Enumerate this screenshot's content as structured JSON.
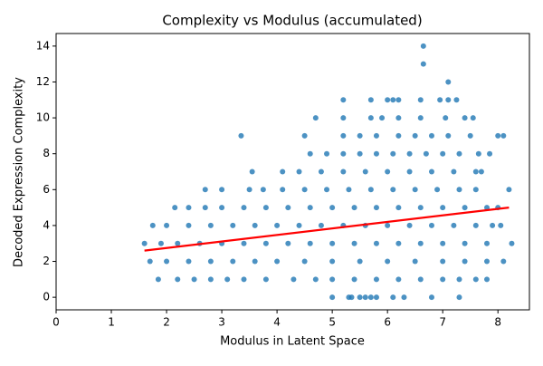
{
  "chart_data": {
    "type": "scatter",
    "title": "Complexity vs Modulus (accumulated)",
    "xlabel": "Modulus in Latent Space",
    "ylabel": "Decoded Expression Complexity",
    "xlim": [
      0,
      8.57
    ],
    "ylim": [
      -0.7,
      14.7
    ],
    "xticks": [
      0,
      1,
      2,
      3,
      4,
      5,
      6,
      7,
      8
    ],
    "yticks": [
      0,
      2,
      4,
      6,
      8,
      10,
      12,
      14
    ],
    "series": [
      {
        "color": "#1f77b4",
        "x": [
          5.0,
          5.3,
          5.35,
          5.5,
          5.6,
          5.7,
          5.8,
          6.1,
          6.3,
          6.8,
          7.3,
          1.85,
          2.2,
          2.5,
          2.8,
          3.1,
          3.4,
          3.8,
          4.3,
          4.7,
          5.0,
          5.4,
          5.8,
          6.2,
          6.6,
          7.0,
          7.3,
          7.6,
          7.8,
          1.7,
          2.0,
          2.4,
          2.8,
          3.2,
          3.6,
          4.0,
          4.5,
          5.0,
          5.5,
          6.0,
          6.5,
          7.0,
          7.4,
          7.8,
          8.1,
          1.6,
          1.9,
          2.2,
          2.6,
          3.0,
          3.4,
          3.8,
          4.2,
          4.6,
          5.0,
          5.4,
          5.8,
          6.2,
          6.6,
          7.0,
          7.4,
          7.8,
          8.25,
          1.75,
          2.0,
          2.4,
          2.8,
          3.2,
          3.6,
          4.0,
          4.4,
          4.8,
          5.2,
          5.6,
          6.0,
          6.4,
          6.8,
          7.2,
          7.6,
          7.9,
          8.05,
          2.15,
          2.4,
          2.7,
          3.0,
          3.4,
          3.8,
          4.2,
          4.6,
          5.0,
          5.4,
          5.8,
          6.2,
          6.6,
          7.0,
          7.4,
          7.8,
          8.0,
          2.7,
          3.0,
          3.5,
          3.75,
          4.1,
          4.5,
          4.9,
          5.3,
          5.7,
          6.1,
          6.5,
          6.9,
          7.3,
          7.6,
          8.2,
          3.55,
          4.1,
          4.4,
          4.8,
          5.2,
          5.6,
          6.0,
          6.4,
          6.8,
          7.2,
          7.6,
          7.7,
          4.6,
          4.9,
          5.2,
          5.5,
          5.8,
          6.1,
          6.4,
          6.7,
          7.0,
          7.3,
          7.65,
          7.85,
          3.35,
          4.5,
          5.2,
          5.5,
          5.8,
          6.2,
          6.5,
          6.8,
          7.1,
          7.5,
          8.0,
          8.1,
          4.7,
          5.2,
          5.7,
          5.9,
          6.2,
          6.6,
          7.05,
          7.4,
          7.55,
          5.2,
          5.7,
          6.0,
          6.1,
          6.2,
          6.6,
          6.95,
          7.1,
          7.25,
          7.1,
          6.65,
          6.65
        ],
        "y": [
          0,
          0,
          0,
          0,
          0,
          0,
          0,
          0,
          0,
          0,
          0,
          1,
          1,
          1,
          1,
          1,
          1,
          1,
          1,
          1,
          1,
          1,
          1,
          1,
          1,
          1,
          1,
          1,
          1,
          2,
          2,
          2,
          2,
          2,
          2,
          2,
          2,
          2,
          2,
          2,
          2,
          2,
          2,
          2,
          2,
          3,
          3,
          3,
          3,
          3,
          3,
          3,
          3,
          3,
          3,
          3,
          3,
          3,
          3,
          3,
          3,
          3,
          3,
          4,
          4,
          4,
          4,
          4,
          4,
          4,
          4,
          4,
          4,
          4,
          4,
          4,
          4,
          4,
          4,
          4,
          4,
          5,
          5,
          5,
          5,
          5,
          5,
          5,
          5,
          5,
          5,
          5,
          5,
          5,
          5,
          5,
          5,
          5,
          6,
          6,
          6,
          6,
          6,
          6,
          6,
          6,
          6,
          6,
          6,
          6,
          6,
          6,
          6,
          7,
          7,
          7,
          7,
          7,
          7,
          7,
          7,
          7,
          7,
          7,
          7,
          8,
          8,
          8,
          8,
          8,
          8,
          8,
          8,
          8,
          8,
          8,
          8,
          9,
          9,
          9,
          9,
          9,
          9,
          9,
          9,
          9,
          9,
          9,
          9,
          10,
          10,
          10,
          10,
          10,
          10,
          10,
          10,
          10,
          11,
          11,
          11,
          11,
          11,
          11,
          11,
          11,
          11,
          12,
          13,
          14
        ]
      }
    ],
    "trend": {
      "color": "#ff0000",
      "x": [
        1.6,
        8.2
      ],
      "y": [
        2.6,
        5.0
      ]
    }
  }
}
